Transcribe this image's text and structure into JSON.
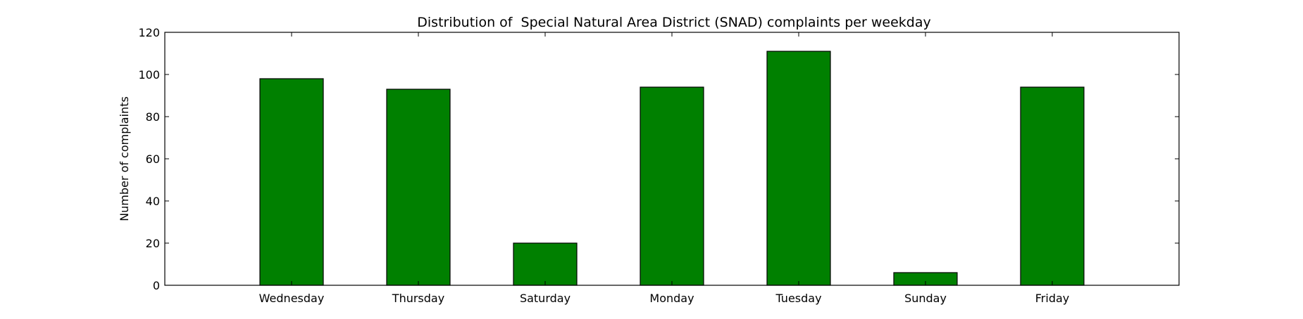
{
  "chart_data": {
    "type": "bar",
    "title": "Distribution of  Special Natural Area District (SNAD) complaints per weekday",
    "xlabel": "",
    "ylabel": "Number of complaints",
    "categories": [
      "Wednesday",
      "Thursday",
      "Saturday",
      "Monday",
      "Tuesday",
      "Sunday",
      "Friday"
    ],
    "values": [
      98,
      93,
      20,
      94,
      111,
      6,
      94
    ],
    "ylim": [
      0,
      120
    ],
    "yticks": [
      0,
      20,
      40,
      60,
      80,
      100,
      120
    ],
    "ytick_labels": [
      "0",
      "20",
      "40",
      "60",
      "80",
      "100",
      "120"
    ],
    "grid": false,
    "legend": "none",
    "colors": {
      "bar_fill": "#008000",
      "bar_edge": "#000000",
      "axes": "#000000",
      "background": "#ffffff"
    }
  }
}
